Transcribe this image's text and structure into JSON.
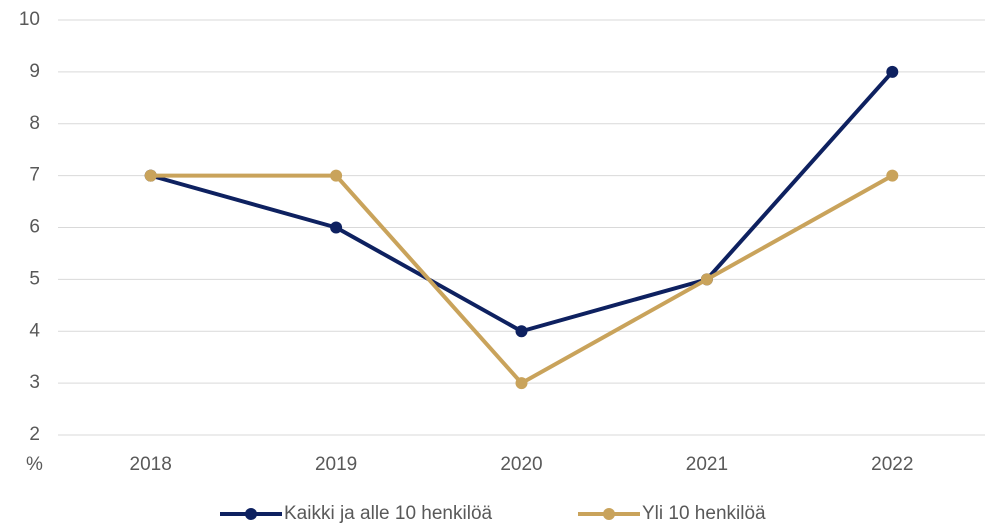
{
  "chart_data": {
    "type": "line",
    "y_label": "%",
    "categories": [
      "2018",
      "2019",
      "2020",
      "2021",
      "2022"
    ],
    "series": [
      {
        "name": "Kaikki ja alle 10 henkilöä",
        "color": "#0e2160",
        "values": [
          7,
          6,
          4,
          5,
          9
        ]
      },
      {
        "name": "Yli 10 henkilöä",
        "color": "#c9a35b",
        "values": [
          7,
          7,
          3,
          5,
          7
        ]
      }
    ],
    "ylim": [
      2,
      10
    ],
    "yticks": [
      2,
      3,
      4,
      5,
      6,
      7,
      8,
      9,
      10
    ],
    "grid": true,
    "legend": "bottom"
  }
}
